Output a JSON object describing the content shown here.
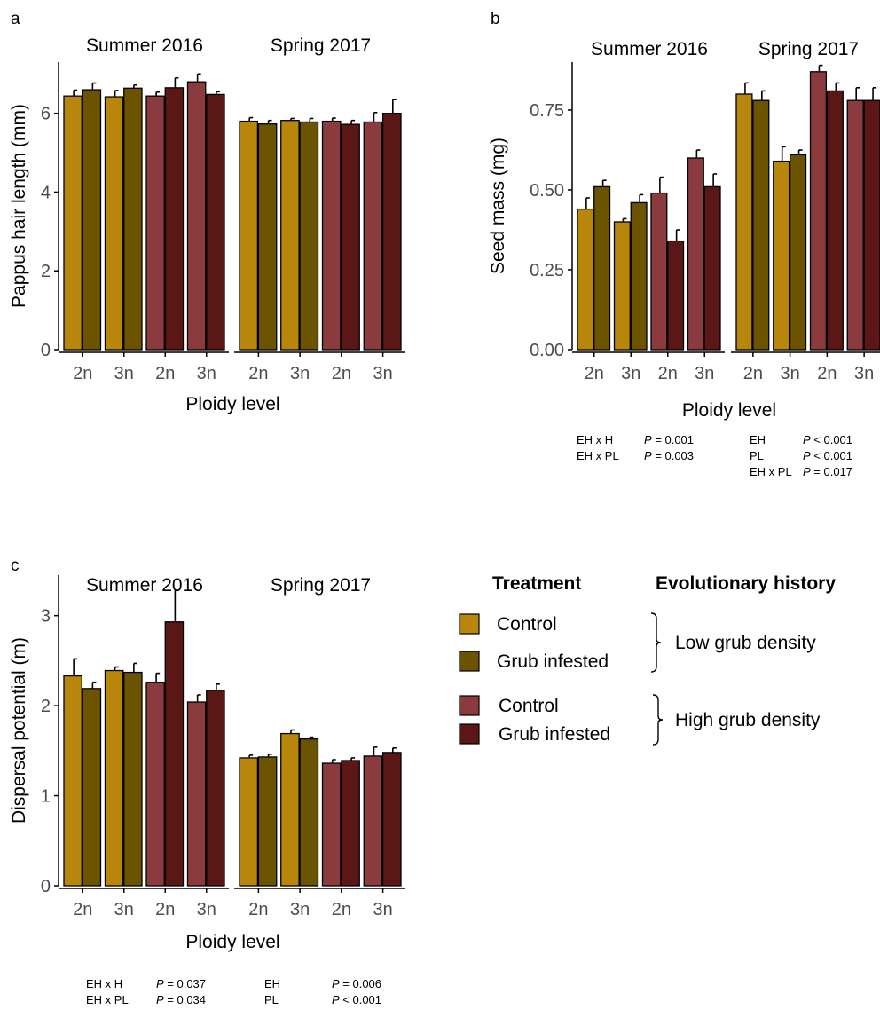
{
  "colors": {
    "low_control": "#b8860b",
    "low_grub": "#6b5300",
    "high_control": "#8b3a3e",
    "high_grub": "#5a1716",
    "axis": "#000000",
    "tick_label": "#4d4d4d"
  },
  "legend": {
    "treatment_title": "Treatment",
    "history_title": "Evolutionary history",
    "groups": [
      {
        "label": "Low grub density",
        "items": [
          {
            "label": "Control",
            "color": "#b8860b"
          },
          {
            "label": "Grub infested",
            "color": "#6b5300"
          }
        ]
      },
      {
        "label": "High grub density",
        "items": [
          {
            "label": "Control",
            "color": "#8b3a3e"
          },
          {
            "label": "Grub infested",
            "color": "#5a1716"
          }
        ]
      }
    ]
  },
  "chart_data": [
    {
      "type": "bar",
      "panel_label": "a",
      "xlabel": "Ploidy level",
      "ylabel": "Pappus hair length (mm)",
      "ylim": [
        0,
        7.3
      ],
      "yticks": [
        0,
        2,
        4,
        6
      ],
      "facets": [
        {
          "title": "Summer 2016",
          "categories": [
            "2n",
            "3n",
            "2n",
            "3n"
          ],
          "values": [
            [
              6.44,
              6.6
            ],
            [
              6.42,
              6.64
            ],
            [
              6.44,
              6.65
            ],
            [
              6.8,
              6.48
            ]
          ],
          "errors": [
            [
              0.15,
              0.17
            ],
            [
              0.16,
              0.08
            ],
            [
              0.1,
              0.25
            ],
            [
              0.2,
              0.07
            ]
          ]
        },
        {
          "title": "Spring 2017",
          "categories": [
            "2n",
            "3n",
            "2n",
            "3n"
          ],
          "values": [
            [
              5.8,
              5.73
            ],
            [
              5.82,
              5.78
            ],
            [
              5.8,
              5.72
            ],
            [
              5.78,
              6.0
            ]
          ],
          "errors": [
            [
              0.09,
              0.09
            ],
            [
              0.05,
              0.09
            ],
            [
              0.08,
              0.1
            ],
            [
              0.24,
              0.35
            ]
          ]
        }
      ],
      "stats": []
    },
    {
      "type": "bar",
      "panel_label": "b",
      "xlabel": "Ploidy level",
      "ylabel": "Seed mass (mg)",
      "ylim": [
        0,
        0.9
      ],
      "yticks": [
        0.0,
        0.25,
        0.5,
        0.75
      ],
      "ytick_labels": [
        "0.00",
        "0.25",
        "0.50",
        "0.75"
      ],
      "facets": [
        {
          "title": "Summer 2016",
          "categories": [
            "2n",
            "3n",
            "2n",
            "3n"
          ],
          "values": [
            [
              0.44,
              0.51
            ],
            [
              0.4,
              0.46
            ],
            [
              0.49,
              0.34
            ],
            [
              0.6,
              0.51
            ]
          ],
          "errors": [
            [
              0.035,
              0.02
            ],
            [
              0.01,
              0.025
            ],
            [
              0.05,
              0.035
            ],
            [
              0.025,
              0.04
            ]
          ]
        },
        {
          "title": "Spring 2017",
          "categories": [
            "2n",
            "3n",
            "2n",
            "3n"
          ],
          "values": [
            [
              0.8,
              0.78
            ],
            [
              0.59,
              0.61
            ],
            [
              0.87,
              0.81
            ],
            [
              0.78,
              0.78
            ]
          ],
          "errors": [
            [
              0.035,
              0.03
            ],
            [
              0.045,
              0.015
            ],
            [
              0.02,
              0.025
            ],
            [
              0.04,
              0.04
            ]
          ]
        }
      ],
      "stats": [
        [
          {
            "term": "EH x H",
            "p": "= 0.001"
          },
          {
            "term": "EH x PL",
            "p": "= 0.003"
          }
        ],
        [
          {
            "term": "EH",
            "p": "< 0.001"
          },
          {
            "term": "PL",
            "p": "< 0.001"
          },
          {
            "term": "EH x PL",
            "p": "= 0.017"
          }
        ]
      ]
    },
    {
      "type": "bar",
      "panel_label": "c",
      "xlabel": "Ploidy level",
      "ylabel": "Dispersal potential (m)",
      "ylim": [
        0,
        3.45
      ],
      "yticks": [
        0,
        1,
        2,
        3
      ],
      "facets": [
        {
          "title": "Summer 2016",
          "categories": [
            "2n",
            "3n",
            "2n",
            "3n"
          ],
          "values": [
            [
              2.33,
              2.19
            ],
            [
              2.39,
              2.37
            ],
            [
              2.26,
              2.93
            ],
            [
              2.04,
              2.17
            ]
          ],
          "errors": [
            [
              0.19,
              0.07
            ],
            [
              0.04,
              0.1
            ],
            [
              0.1,
              0.35
            ],
            [
              0.08,
              0.07
            ]
          ]
        },
        {
          "title": "Spring 2017",
          "categories": [
            "2n",
            "3n",
            "2n",
            "3n"
          ],
          "values": [
            [
              1.42,
              1.43
            ],
            [
              1.69,
              1.63
            ],
            [
              1.36,
              1.39
            ],
            [
              1.44,
              1.48
            ]
          ],
          "errors": [
            [
              0.03,
              0.03
            ],
            [
              0.04,
              0.02
            ],
            [
              0.04,
              0.03
            ],
            [
              0.1,
              0.05
            ]
          ]
        }
      ],
      "stats": [
        [
          {
            "term": "EH x H",
            "p": "= 0.037"
          },
          {
            "term": "EH x PL",
            "p": "= 0.034"
          }
        ],
        [
          {
            "term": "EH",
            "p": "= 0.006"
          },
          {
            "term": "PL",
            "p": "< 0.001"
          }
        ]
      ]
    }
  ]
}
